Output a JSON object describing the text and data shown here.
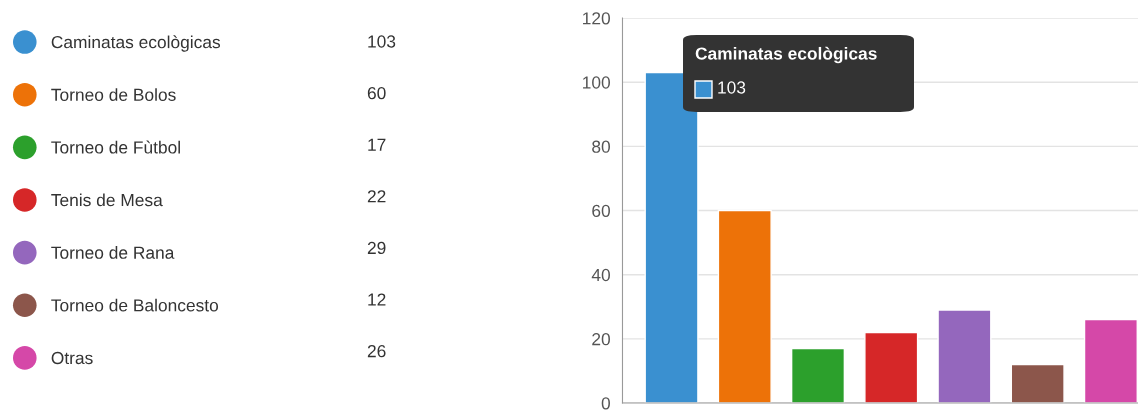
{
  "chart_data": {
    "type": "bar",
    "categories": [
      null
    ],
    "series": [
      {
        "name": "Caminatas ecològicas",
        "color": "#3a90d0",
        "values": [
          103
        ]
      },
      {
        "name": "Torneo de Bolos",
        "color": "#ed7208",
        "values": [
          60
        ]
      },
      {
        "name": "Torneo de Fùtbol",
        "color": "#2ca02c",
        "values": [
          17
        ]
      },
      {
        "name": "Tenis de Mesa",
        "color": "#d62728",
        "values": [
          22
        ]
      },
      {
        "name": "Torneo de Rana",
        "color": "#9467bd",
        "values": [
          29
        ]
      },
      {
        "name": "Torneo de Baloncesto",
        "color": "#8c564b",
        "values": [
          12
        ]
      },
      {
        "name": "Otras",
        "color": "#d548a8",
        "values": [
          26
        ]
      }
    ],
    "ylim": [
      0,
      120
    ],
    "yticks": [
      0,
      20,
      40,
      60,
      80,
      100,
      120
    ],
    "grid": "y",
    "legend": "left",
    "tick_labels": "y",
    "annotations": [
      "Caminatas ecològicas",
      "103",
      "103",
      "60",
      "17",
      "22",
      "29",
      "12",
      "26"
    ]
  }
}
